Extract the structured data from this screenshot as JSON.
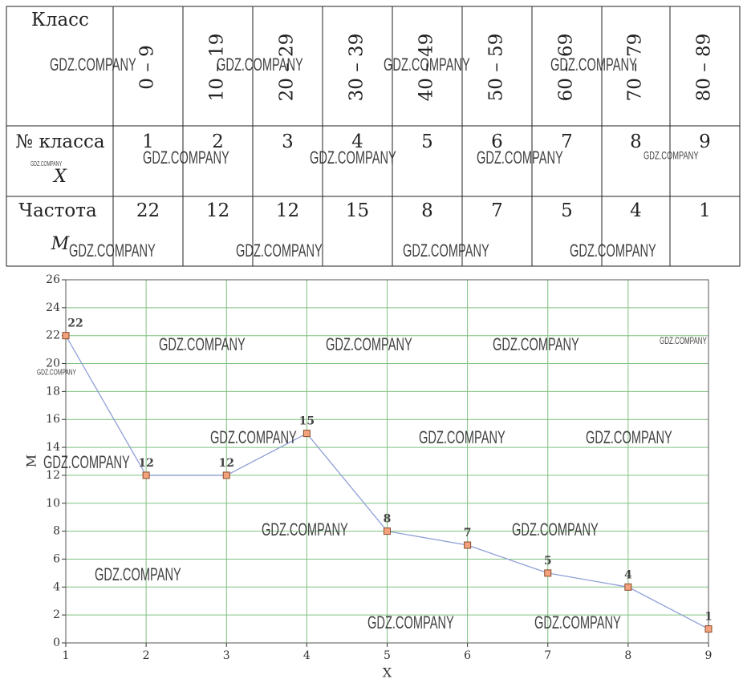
{
  "table": {
    "row_labels": [
      "Класс",
      "№ класса",
      "Частота"
    ],
    "row_symbols": [
      "X",
      "M"
    ],
    "classes": [
      "0 – 9",
      "10 – 19",
      "20 – 29",
      "30 – 39",
      "40 – 49",
      "50 – 59",
      "60 – 69",
      "70 – 79",
      "80 – 89"
    ],
    "numbers": [
      1,
      2,
      3,
      4,
      5,
      6,
      7,
      8,
      9
    ],
    "frequencies": [
      22,
      12,
      12,
      15,
      8,
      7,
      5,
      4,
      1
    ]
  },
  "chart_data": {
    "type": "line",
    "x": [
      1,
      2,
      3,
      4,
      5,
      6,
      7,
      8,
      9
    ],
    "series": [
      {
        "color": "#8f9fd6",
        "marker_color": "#f2a27c",
        "values": [
          22,
          12,
          12,
          15,
          8,
          7,
          5,
          4,
          1
        ]
      }
    ],
    "xlim": [
      1,
      9
    ],
    "xticks": [
      1,
      2,
      3,
      4,
      5,
      6,
      7,
      8,
      9
    ],
    "ylim": [
      0,
      26
    ],
    "yticks": [
      0,
      2,
      4,
      6,
      8,
      10,
      12,
      14,
      16,
      18,
      20,
      22,
      24,
      26
    ],
    "xlabel": "X",
    "ylabel": "M",
    "grid": true,
    "grid_color": "#7fc07f"
  },
  "watermark": "GDZ.COMPANY"
}
